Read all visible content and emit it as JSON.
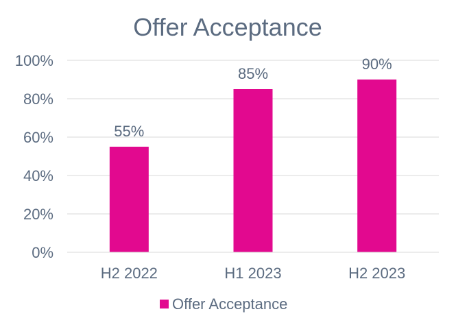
{
  "chart_data": {
    "type": "bar",
    "title": "Offer Acceptance",
    "categories": [
      "H2 2022",
      "H1 2023",
      "H2 2023"
    ],
    "series": [
      {
        "name": "Offer Acceptance",
        "values": [
          55,
          85,
          90
        ],
        "color": "#E2098F"
      }
    ],
    "data_labels": [
      "55%",
      "85%",
      "90%"
    ],
    "ylim": [
      0,
      100
    ],
    "yticks": [
      0,
      20,
      40,
      60,
      80,
      100
    ],
    "ytick_labels": [
      "0%",
      "20%",
      "40%",
      "60%",
      "80%",
      "100%"
    ],
    "grid": true,
    "legend_position": "bottom",
    "text_color": "#5B6B80",
    "axis_color": "#D9D9D9"
  }
}
